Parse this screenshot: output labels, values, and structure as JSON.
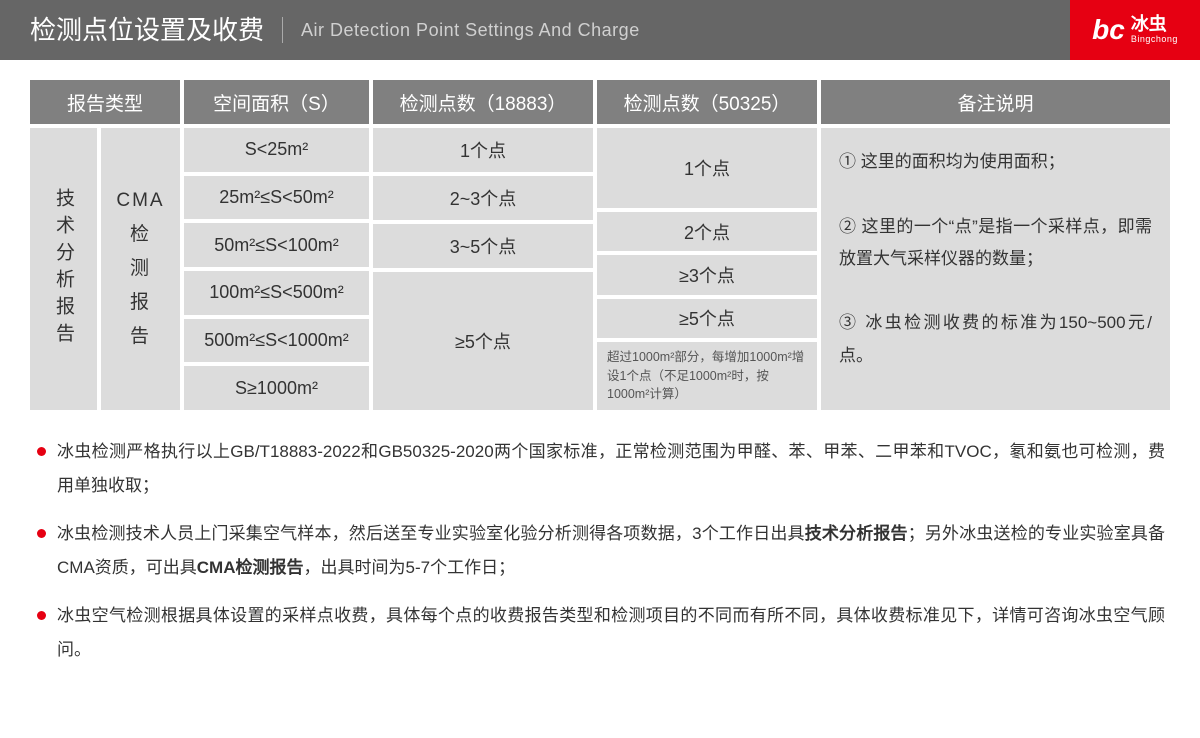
{
  "header": {
    "title_cn": "检测点位设置及收费",
    "title_en": "Air Detection Point Settings And Charge"
  },
  "logo": {
    "mark": "bc",
    "name_cn": "冰虫",
    "name_en": "Bingchong"
  },
  "columns": {
    "report": "报告类型",
    "area": "空间面积（S）",
    "p18883": "检测点数（18883）",
    "p50325": "检测点数（50325）",
    "notes": "备注说明"
  },
  "report_types": {
    "tech": "技术分析报告",
    "cma": "CMA\n检\n测\n报\n告"
  },
  "areas": [
    "S<25m²",
    "25m²≤S<50m²",
    "50m²≤S<100m²",
    "100m²≤S<500m²",
    "500m²≤S<1000m²",
    "S≥1000m²"
  ],
  "p18883": {
    "r0": "1个点",
    "r1": "2~3个点",
    "r2": "3~5个点",
    "merged": "≥5个点"
  },
  "p50325": {
    "m0": "1个点",
    "m1": "2个点",
    "m2": "≥3个点",
    "m3": "≥5个点",
    "note": "超过1000m²部分，每增加1000m²增设1个点（不足1000m²时，按1000m²计算）"
  },
  "notes_text": "① 这里的面积均为使用面积；\n\n② 这里的一个“点”是指一个采样点，即需放置大气采样仪器的数量；\n\n③ 冰虫检测收费的标准为150~500元/点。",
  "bullets": [
    "冰虫检测严格执行以上GB/T18883-2022和GB50325-2020两个国家标准，正常检测范围为甲醛、苯、甲苯、二甲苯和TVOC，氡和氨也可检测，费用单独收取；",
    "冰虫检测技术人员上门采集空气样本，然后送至专业实验室化验分析测得各项数据，3个工作日出具<b>技术分析报告</b>；另外冰虫送检的专业实验室具备CMA资质，可出具<b>CMA检测报告</b>，出具时间为5-7个工作日；",
    "冰虫空气检测根据具体设置的采样点收费，具体每个点的收费报告类型和检测项目的不同而有所不同，具体收费标准见下，详情可咨询冰虫空气顾问。"
  ],
  "colors": {
    "header_bg": "#666666",
    "th_bg": "#808080",
    "cell_bg": "#dcdcdc",
    "accent": "#e60012",
    "text": "#333333"
  }
}
